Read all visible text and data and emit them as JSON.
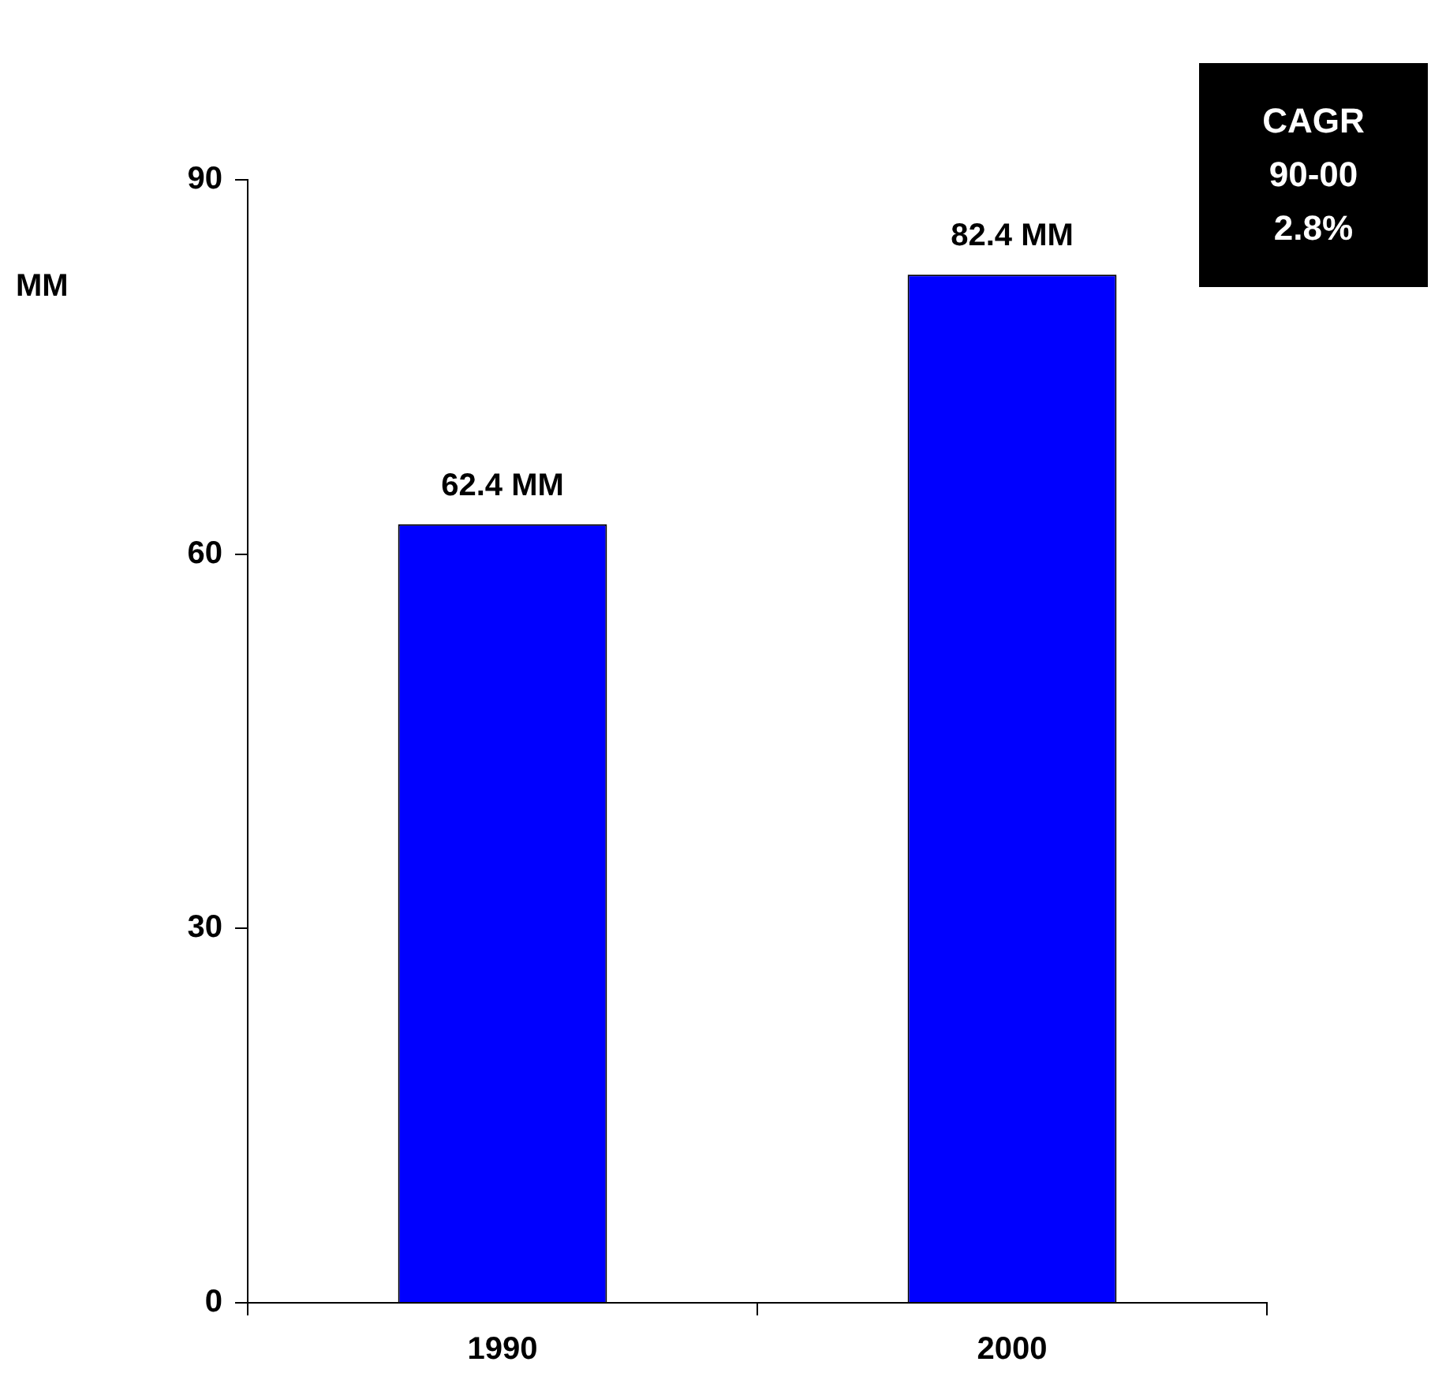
{
  "chart_data": {
    "type": "bar",
    "ylabel": "MM",
    "categories": [
      "1990",
      "2000"
    ],
    "series": [
      {
        "color": "#0000ff",
        "values": [
          62.4,
          82.4
        ],
        "value_labels": [
          "62.4 MM",
          "82.4 MM"
        ]
      }
    ],
    "ylim": [
      0,
      90
    ],
    "yticks": [
      0,
      30,
      60,
      90
    ],
    "grid": false,
    "legend": false,
    "annotations": [
      "CAGR 90-00",
      "2.8%"
    ]
  }
}
